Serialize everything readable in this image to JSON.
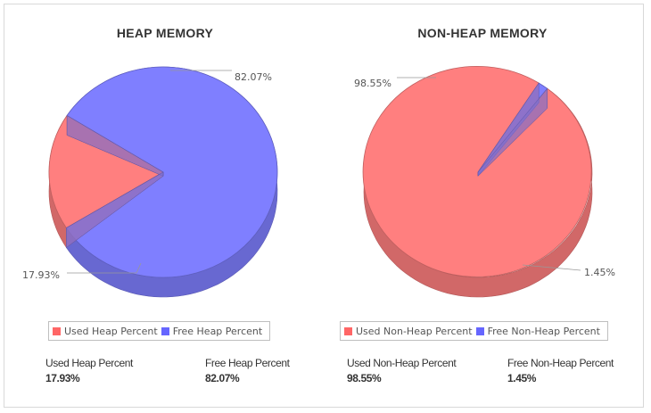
{
  "chart_data": [
    {
      "type": "pie",
      "title": "HEAP MEMORY",
      "slices": [
        {
          "name": "Used Heap Percent",
          "value": 17.93,
          "label": "17.93%",
          "color": "#ff7f7f"
        },
        {
          "name": "Free Heap Percent",
          "value": 82.07,
          "label": "82.07%",
          "color": "#7f7fff"
        }
      ],
      "legend": [
        "Used Heap Percent",
        "Free Heap Percent"
      ],
      "legend_position": "bottom"
    },
    {
      "type": "pie",
      "title": "NON-HEAP MEMORY",
      "slices": [
        {
          "name": "Used Non-Heap Percent",
          "value": 98.55,
          "label": "98.55%",
          "color": "#ff7f7f"
        },
        {
          "name": "Free Non-Heap Percent",
          "value": 1.45,
          "label": "1.45%",
          "color": "#7f7fff"
        }
      ],
      "legend": [
        "Used Non-Heap Percent",
        "Free Non-Heap Percent"
      ],
      "legend_position": "bottom"
    }
  ],
  "stats": {
    "heap": {
      "used_label": "Used Heap Percent",
      "used_value": "17.93%",
      "free_label": "Free Heap Percent",
      "free_value": "82.07%"
    },
    "nonheap": {
      "used_label": "Used Non-Heap Percent",
      "used_value": "98.55%",
      "free_label": "Free Non-Heap Percent",
      "free_value": "1.45%"
    }
  }
}
